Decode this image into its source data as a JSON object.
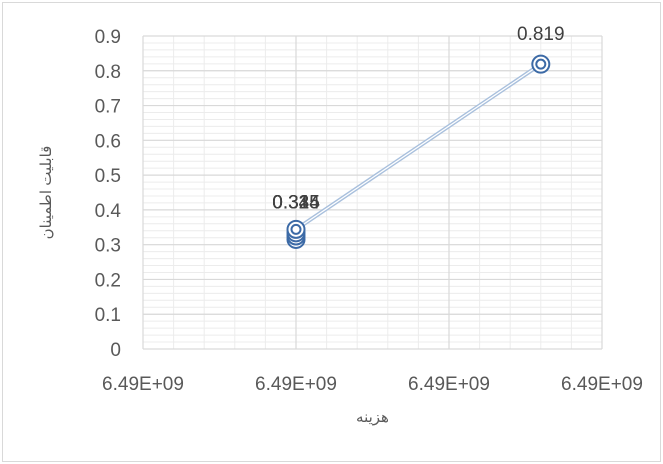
{
  "chart_data": {
    "type": "scatter",
    "title": "",
    "xlabel": "هزینه",
    "ylabel": "قابلیت اطمینان",
    "x_tick_labels": [
      "6.49E+09",
      "6.49E+09",
      "6.49E+09",
      "6.49E+09"
    ],
    "y_tick_labels": [
      "0",
      "0.1",
      "0.2",
      "0.3",
      "0.4",
      "0.5",
      "0.6",
      "0.7",
      "0.8",
      "0.9"
    ],
    "ylim": [
      0,
      0.9
    ],
    "grid": true,
    "legend": "none",
    "series": [
      {
        "points": [
          {
            "x_tick_pos": 1,
            "y": 0.315,
            "label": "0.315"
          },
          {
            "x_tick_pos": 1,
            "y": 0.325,
            "label": "0.325"
          },
          {
            "x_tick_pos": 1,
            "y": 0.334,
            "label": "0.334"
          },
          {
            "x_tick_pos": 1,
            "y": 0.344,
            "label": "0.344"
          },
          {
            "x_tick_pos": 2.6,
            "y": 0.819,
            "label": "0.819"
          }
        ]
      }
    ],
    "colors": {
      "marker": "#3c6aa6",
      "line": "#a9c0dd",
      "major_grid": "#d9d9d9",
      "minor_grid": "#ececec",
      "text": "#595959"
    }
  }
}
